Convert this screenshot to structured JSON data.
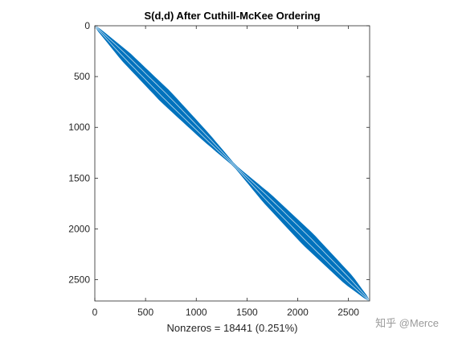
{
  "chart_data": {
    "type": "scatter",
    "plot_kind": "sparsity-pattern",
    "title": "S(d,d) After Cuthill-McKee Ordering",
    "xlabel": "Nonzeros = 18441 (0.251%)",
    "xlim": [
      0,
      2709
    ],
    "ylim": [
      0,
      2709
    ],
    "y_reversed": true,
    "x_ticks": [
      0,
      500,
      1000,
      1500,
      2000,
      2500
    ],
    "y_ticks": [
      0,
      500,
      1000,
      1500,
      2000,
      2500
    ],
    "x_tick_labels": [
      "0",
      "500",
      "1000",
      "1500",
      "2000",
      "2500"
    ],
    "y_tick_labels": [
      "0",
      "500",
      "1000",
      "1500",
      "2000",
      "2500"
    ],
    "matrix_size": 2709,
    "nonzeros": 18441,
    "density_percent": 0.251,
    "bandwidth_profile": [
      {
        "index": 0,
        "half_width": 10
      },
      {
        "index": 300,
        "half_width": 55
      },
      {
        "index": 700,
        "half_width": 70
      },
      {
        "index": 1100,
        "half_width": 45
      },
      {
        "index": 1380,
        "half_width": 12
      },
      {
        "index": 1700,
        "half_width": 55
      },
      {
        "index": 2100,
        "half_width": 75
      },
      {
        "index": 2500,
        "half_width": 55
      },
      {
        "index": 2709,
        "half_width": 10
      }
    ],
    "grid": false,
    "color": "#0072bd"
  },
  "watermark": "知乎 @Merce"
}
